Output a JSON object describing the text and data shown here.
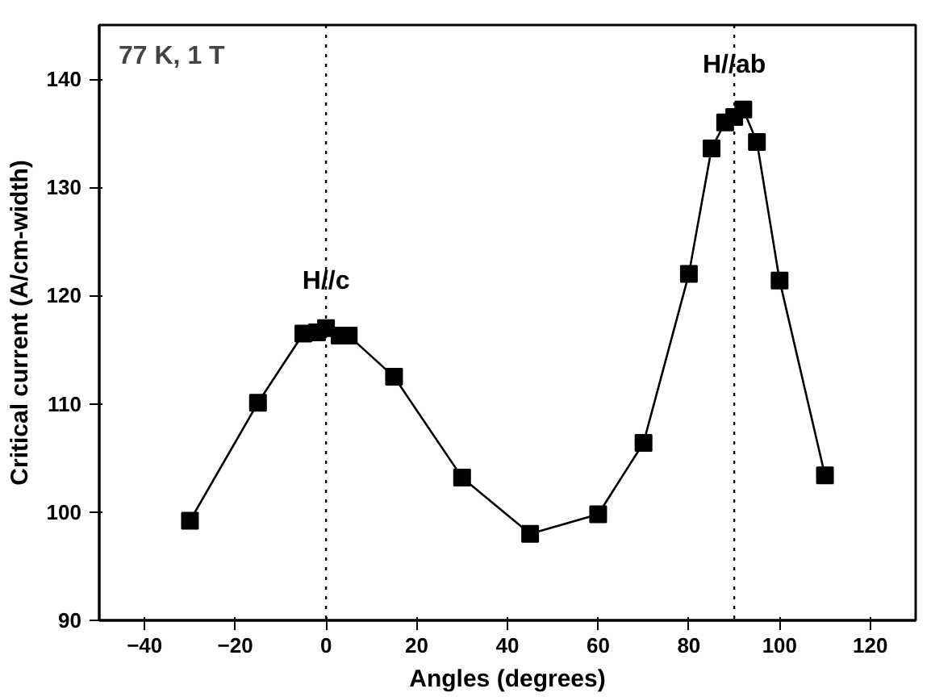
{
  "chart_data": {
    "type": "line",
    "xlabel": "Angles (degrees)",
    "ylabel": "Critical current (A/cm-width)",
    "x": [
      -30,
      -15,
      -5,
      -2,
      0,
      3,
      5,
      15,
      30,
      45,
      60,
      70,
      80,
      85,
      88,
      90,
      92,
      95,
      100,
      110
    ],
    "series": [
      {
        "color": "#000000",
        "values": [
          99.2,
          110.1,
          116.5,
          116.6,
          117.0,
          116.3,
          116.3,
          112.5,
          103.2,
          98.0,
          99.8,
          106.4,
          122.0,
          133.6,
          136.0,
          136.5,
          137.2,
          134.2,
          121.4,
          103.4
        ]
      }
    ],
    "xlim": [
      -50,
      130
    ],
    "ylim": [
      90,
      145
    ],
    "xticks": [
      -40,
      -20,
      0,
      20,
      40,
      60,
      80,
      100,
      120
    ],
    "yticks": [
      90,
      100,
      110,
      120,
      130,
      140
    ],
    "marker": "square",
    "line_style": "solid",
    "ref_lines": [
      {
        "axis": "x",
        "value": 0,
        "line_style": "dotted",
        "color": "#000000"
      },
      {
        "axis": "x",
        "value": 90,
        "line_style": "dotted",
        "color": "#000000"
      }
    ],
    "annotations": [
      "77 K, 1 T",
      {
        "text": "H//c",
        "x": 0,
        "y": 120
      },
      {
        "text": "H//ab",
        "x": 90,
        "y": 140
      }
    ]
  }
}
